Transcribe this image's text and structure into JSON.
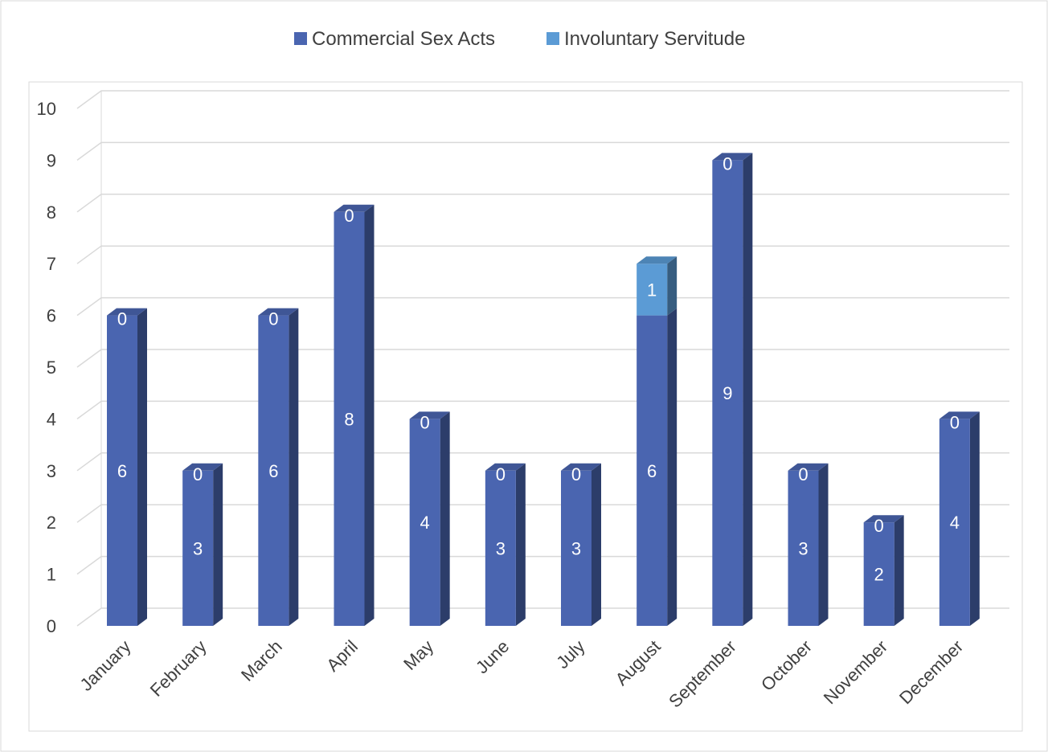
{
  "chart_data": {
    "type": "bar",
    "stacked": true,
    "three_d": true,
    "categories": [
      "January",
      "February",
      "March",
      "April",
      "May",
      "June",
      "July",
      "August",
      "September",
      "October",
      "November",
      "December"
    ],
    "series": [
      {
        "name": "Commercial Sex Acts",
        "values": [
          6,
          3,
          6,
          8,
          4,
          3,
          3,
          6,
          9,
          3,
          2,
          4
        ],
        "color": "#4a65b0"
      },
      {
        "name": "Involuntary Servitude",
        "values": [
          0,
          0,
          0,
          0,
          0,
          0,
          0,
          1,
          0,
          0,
          0,
          0
        ],
        "color": "#5b9bd5"
      }
    ],
    "ylim": [
      0,
      10
    ],
    "yticks": [
      0,
      1,
      2,
      3,
      4,
      5,
      6,
      7,
      8,
      9,
      10
    ],
    "grid": true,
    "legend_position": "top",
    "data_labels": true
  },
  "colors": {
    "grid": "#d9d9d9",
    "frame": "#d9d9d9",
    "text": "#404040",
    "label": "#ffffff"
  }
}
